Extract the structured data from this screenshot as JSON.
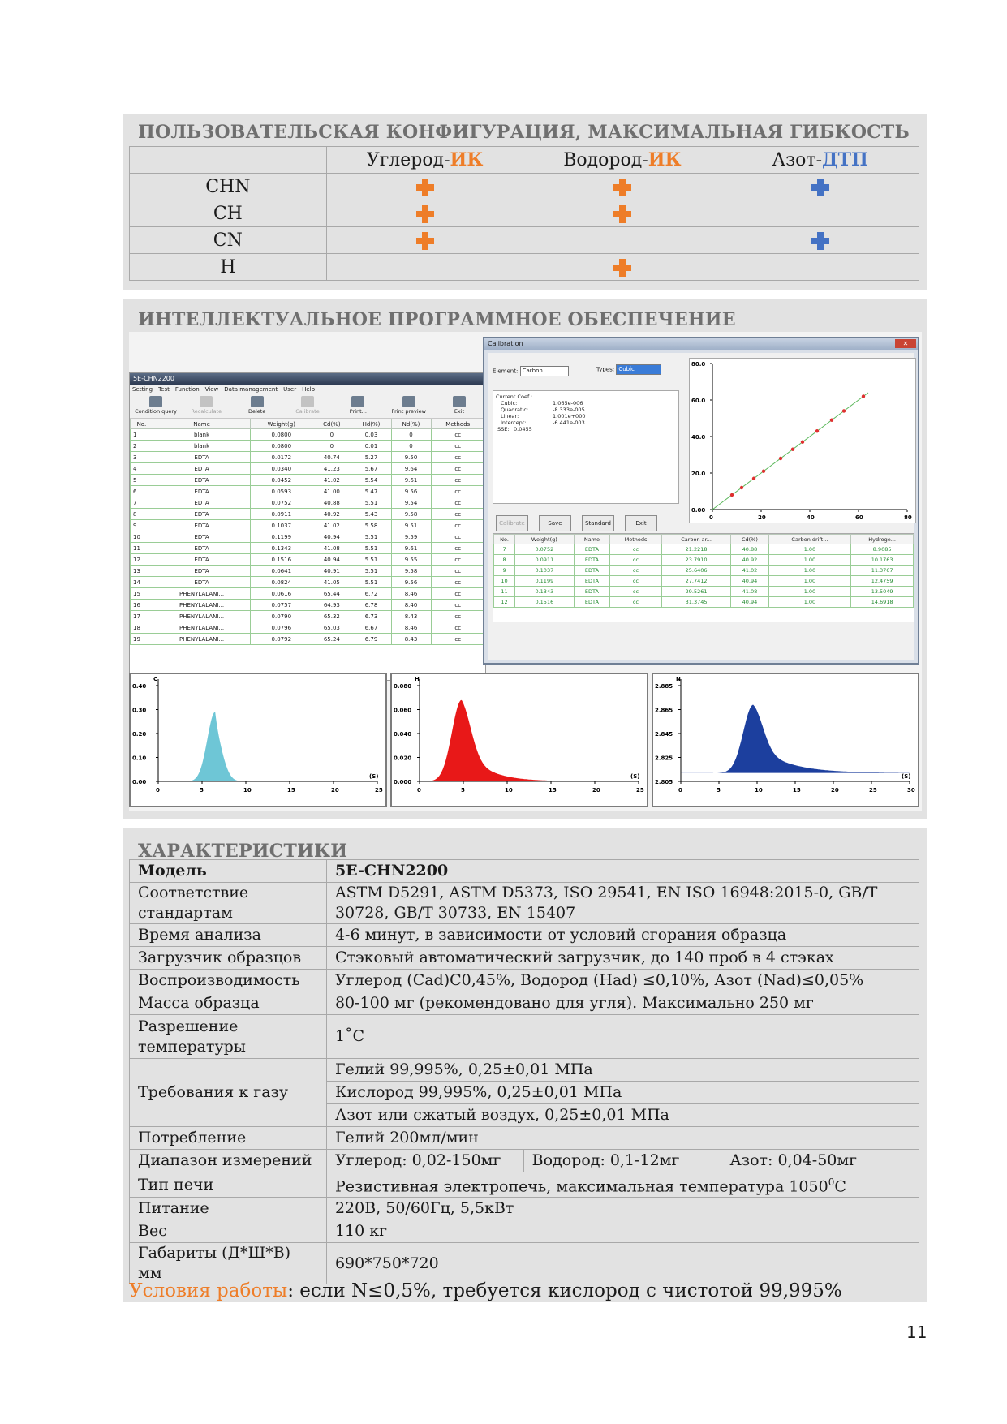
{
  "config": {
    "title": "ПОЛЬЗОВАТЕЛЬСКАЯ КОНФИГУРАЦИЯ, МАКСИМАЛЬНАЯ ГИБКОСТЬ",
    "columns": [
      {
        "prefix": "Углерод-",
        "suffix": "ИК",
        "color": "#ee7d28"
      },
      {
        "prefix": "Водород-",
        "suffix": "ИК",
        "color": "#ee7d28"
      },
      {
        "prefix": "Азот-",
        "suffix": "ДТП",
        "color": "#4472c4"
      }
    ],
    "rows": [
      {
        "name": "CHN",
        "marks": [
          true,
          true,
          true
        ]
      },
      {
        "name": "CH",
        "marks": [
          true,
          true,
          false
        ]
      },
      {
        "name": "CN",
        "marks": [
          true,
          false,
          true
        ]
      },
      {
        "name": "H",
        "marks": [
          false,
          true,
          false
        ]
      }
    ]
  },
  "software": {
    "title": "ИНТЕЛЛЕКТУАЛЬНОЕ ПРОГРАММНОЕ ОБЕСПЕЧЕНИЕ",
    "main_window": {
      "title": "5E-CHN2200",
      "menu": [
        "Setting",
        "Test",
        "Function",
        "View",
        "Data management",
        "User",
        "Help"
      ],
      "toolbar": [
        {
          "label": "Condition query",
          "enabled": true
        },
        {
          "label": "Recalculate",
          "enabled": false
        },
        {
          "label": "Delete",
          "enabled": true
        },
        {
          "label": "Calibrate",
          "enabled": false
        },
        {
          "label": "Print...",
          "enabled": true
        },
        {
          "label": "Print preview",
          "enabled": true
        },
        {
          "label": "Exit",
          "enabled": true
        }
      ],
      "headers": [
        "No.",
        "Name",
        "Weight(g)",
        "Cd(%)",
        "Hd(%)",
        "Nd(%)",
        "Methods"
      ],
      "rows": [
        [
          "1",
          "blank",
          "0.0800",
          "0",
          "0.03",
          "0",
          "cc"
        ],
        [
          "2",
          "blank",
          "0.0800",
          "0",
          "0.01",
          "0",
          "cc"
        ],
        [
          "3",
          "EDTA",
          "0.0172",
          "40.74",
          "5.27",
          "9.50",
          "cc"
        ],
        [
          "4",
          "EDTA",
          "0.0340",
          "41.23",
          "5.67",
          "9.64",
          "cc"
        ],
        [
          "5",
          "EDTA",
          "0.0452",
          "41.02",
          "5.54",
          "9.61",
          "cc"
        ],
        [
          "6",
          "EDTA",
          "0.0593",
          "41.00",
          "5.47",
          "9.56",
          "cc"
        ],
        [
          "7",
          "EDTA",
          "0.0752",
          "40.88",
          "5.51",
          "9.54",
          "cc"
        ],
        [
          "8",
          "EDTA",
          "0.0911",
          "40.92",
          "5.43",
          "9.58",
          "cc"
        ],
        [
          "9",
          "EDTA",
          "0.1037",
          "41.02",
          "5.58",
          "9.51",
          "cc"
        ],
        [
          "10",
          "EDTA",
          "0.1199",
          "40.94",
          "5.51",
          "9.59",
          "cc"
        ],
        [
          "11",
          "EDTA",
          "0.1343",
          "41.08",
          "5.51",
          "9.61",
          "cc"
        ],
        [
          "12",
          "EDTA",
          "0.1516",
          "40.94",
          "5.51",
          "9.55",
          "cc"
        ],
        [
          "13",
          "EDTA",
          "0.0641",
          "40.91",
          "5.51",
          "9.58",
          "cc"
        ],
        [
          "14",
          "EDTA",
          "0.0824",
          "41.05",
          "5.51",
          "9.56",
          "cc"
        ],
        [
          "15",
          "PHENYLALANI...",
          "0.0616",
          "65.44",
          "6.72",
          "8.46",
          "cc"
        ],
        [
          "16",
          "PHENYLALANI...",
          "0.0757",
          "64.93",
          "6.78",
          "8.40",
          "cc"
        ],
        [
          "17",
          "PHENYLALANI...",
          "0.0790",
          "65.32",
          "6.73",
          "8.43",
          "cc"
        ],
        [
          "18",
          "PHENYLALANI...",
          "0.0796",
          "65.03",
          "6.67",
          "8.46",
          "cc"
        ],
        [
          "19",
          "PHENYLALANI...",
          "0.0792",
          "65.24",
          "6.79",
          "8.43",
          "cc"
        ]
      ]
    },
    "calibration": {
      "title": "Calibration",
      "element_label": "Element:",
      "element_value": "Carbon",
      "types_label": "Types:",
      "types_value": "Cubic",
      "coef_title": "Current Coef.:",
      "coefs": [
        {
          "k": "Cubic:",
          "v": "1.065e-006"
        },
        {
          "k": "Quadratic:",
          "v": "-8.333e-005"
        },
        {
          "k": "Linear:",
          "v": "1.001e+000"
        },
        {
          "k": "Intercept:",
          "v": "-6.441e-003"
        }
      ],
      "sse_label": "SSE:",
      "sse_value": "0.0455",
      "buttons": [
        {
          "label": "Calibrate",
          "enabled": false
        },
        {
          "label": "Save",
          "enabled": true
        },
        {
          "label": "Standard",
          "enabled": true
        },
        {
          "label": "Exit",
          "enabled": true
        }
      ],
      "headers": [
        "No.",
        "Weight(g)",
        "Name",
        "Methods",
        "Carbon ar...",
        "Cd(%)",
        "Carbon drift...",
        "Hydroge..."
      ],
      "rows": [
        [
          "7",
          "0.0752",
          "EDTA",
          "cc",
          "21.2218",
          "40.88",
          "1.00",
          "8.9085"
        ],
        [
          "8",
          "0.0911",
          "EDTA",
          "cc",
          "23.7910",
          "40.92",
          "1.00",
          "10.1763"
        ],
        [
          "9",
          "0.1037",
          "EDTA",
          "cc",
          "25.6406",
          "41.02",
          "1.00",
          "11.3767"
        ],
        [
          "10",
          "0.1199",
          "EDTA",
          "cc",
          "27.7412",
          "40.94",
          "1.00",
          "12.4759"
        ],
        [
          "11",
          "0.1343",
          "EDTA",
          "cc",
          "29.5261",
          "41.08",
          "1.00",
          "13.5049"
        ],
        [
          "12",
          "0.1516",
          "EDTA",
          "cc",
          "31.3745",
          "40.94",
          "1.00",
          "14.6918"
        ]
      ]
    }
  },
  "chart_data": [
    {
      "type": "scatter",
      "title": "",
      "xlim": [
        0,
        80
      ],
      "ylim": [
        0,
        80
      ],
      "xticks": [
        "0",
        "20",
        "40",
        "60",
        "80"
      ],
      "yticks": [
        "0.00",
        "20.0",
        "40.0",
        "60.0",
        "80.0"
      ],
      "x": [
        8,
        12,
        17,
        21,
        28,
        33,
        37,
        43,
        49,
        54,
        62
      ],
      "y": [
        8,
        12,
        17,
        21,
        28,
        33,
        37,
        43,
        49,
        54,
        62
      ],
      "point_color": "#e03030",
      "line_color": "#5cb85c"
    },
    {
      "type": "area",
      "series_label": "C",
      "color": "#6ec6d6",
      "xlim": [
        0,
        25
      ],
      "ylim": [
        0,
        0.4
      ],
      "xticks": [
        "0",
        "5",
        "10",
        "15",
        "20",
        "25"
      ],
      "yticks": [
        "0.00",
        "0.10",
        "0.20",
        "0.30",
        "0.40"
      ],
      "xunit": "(S)",
      "peak_x": 6.5,
      "peak_y": 0.29,
      "width": 0.9,
      "tail": 0.4
    },
    {
      "type": "area",
      "series_label": "H",
      "color": "#e81818",
      "xlim": [
        0,
        25
      ],
      "ylim": [
        0,
        0.08
      ],
      "xticks": [
        "0",
        "5",
        "10",
        "15",
        "20",
        "25"
      ],
      "yticks": [
        "0.000",
        "0.020",
        "0.040",
        "0.060",
        "0.080"
      ],
      "xunit": "(S)",
      "peak_x": 4.8,
      "peak_y": 0.068,
      "width": 1.1,
      "tail": 2.6
    },
    {
      "type": "area",
      "series_label": "N",
      "color": "#1c3f9e",
      "xlim": [
        0,
        30
      ],
      "ylim": [
        2.805,
        2.885
      ],
      "xticks": [
        "0",
        "5",
        "10",
        "15",
        "20",
        "25",
        "30"
      ],
      "yticks": [
        "2.805",
        "2.825",
        "2.845",
        "2.865",
        "2.885"
      ],
      "xunit": "(S)",
      "baseline": 2.812,
      "peak_x": 9.5,
      "peak_y": 2.869,
      "width": 1.3,
      "tail": 4.0
    }
  ],
  "specs": {
    "title": "ХАРАКТЕРИСТИКИ",
    "model_label": "Модель",
    "model_value": "5E-CHN2200",
    "rows": [
      {
        "k": "Соответствие стандартам",
        "v": "ASTM D5291, ASTM D5373, ISO 29541, EN ISO 16948:2015-0, GB/T 30728, GB/T 30733, EN 15407"
      },
      {
        "k": "Время анализа",
        "v": "4-6 минут, в зависимости от условий сгорания образца"
      },
      {
        "k": "Загрузчик образцов",
        "v": "Стэковый автоматический загрузчик, до 140 проб в 4 стэках"
      },
      {
        "k": "Воспроизводимость",
        "v": "Углерод (Cad)C0,45%, Водород (Had) ≤0,10%, Азот (Nad)≤0,05%"
      },
      {
        "k": "Масса образца",
        "v": "80-100 мг (рекомендовано для угля). Максимально 250 мг"
      }
    ],
    "temp_label": "Разрешение температуры",
    "temp_value": "1˚C",
    "gas_label": "Требования к газу",
    "gas_values": [
      "Гелий 99,995%, 0,25±0,01 МПа",
      "Кислород 99,995%, 0,25±0,01 МПа",
      "Азот или сжатый воздух, 0,25±0,01 МПа"
    ],
    "consumption_label": "Потребление",
    "consumption_value": "Гелий 200мл/мин",
    "range_label": "Диапазон измерений",
    "range_values": [
      "Углерод: 0,02-150мг",
      "Водород: 0,1-12мг",
      "Азот: 0,04-50мг"
    ],
    "furnace_label": "Тип печи",
    "furnace_value": "Резистивная электропечь, максимальная температура 1050",
    "furnace_sup": "0",
    "furnace_unit": "C",
    "tail_rows": [
      {
        "k": "Питание",
        "v": "220В, 50/60Гц, 5,5кВт"
      },
      {
        "k": "Вес",
        "v": "110 кг"
      },
      {
        "k": "Габариты (Д*Ш*В) мм",
        "v": "690*750*720"
      }
    ],
    "conditions_label": "Условия работы",
    "conditions_text": ": если N≤0,5%, требуется кислород с чистотой 99,995%"
  },
  "page_number": "11"
}
